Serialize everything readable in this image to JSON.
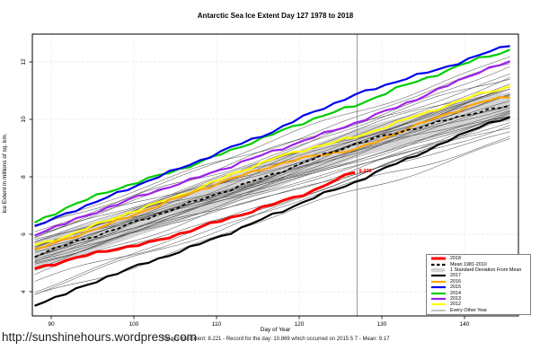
{
  "page": {
    "url_watermark": "http://sunshinehours.wordpress.com"
  },
  "chart_data": {
    "type": "line",
    "title": "Antarctic Sea Ice Extent Day 127 1978 to 2018",
    "xlabel": "Day of Year",
    "ylabel": "Ice Extent in millions of sq. km.",
    "caption": "Today's Ice Extent: 8.221  - Record for the day: 10.869 which occurred on 2015 5 7  - Mean: 9.17",
    "stats": {
      "today_extent": "8.221",
      "record_for_day": "10.869",
      "record_date": "2015 5 7",
      "mean_today": "9.17"
    },
    "x_ticks": [
      90,
      100,
      110,
      120,
      130,
      140
    ],
    "y_ticks": [
      4,
      6,
      8,
      10,
      12
    ],
    "xlim": [
      87.7,
      146.5
    ],
    "ylim": [
      3.16,
      12.97
    ],
    "grid": true,
    "legend_position": "bottom-right",
    "marker_line": {
      "day": 127,
      "color": "#8c8c8c"
    },
    "anchor_days": [
      88,
      92,
      97,
      102,
      107,
      112,
      117,
      122,
      127,
      132,
      137,
      142,
      145.5
    ],
    "series": [
      {
        "name": "2017",
        "color": "#000000",
        "width": 2.2,
        "values": [
          3.55,
          3.95,
          4.55,
          5.05,
          5.55,
          6.1,
          6.7,
          7.3,
          7.84,
          8.5,
          9.1,
          9.8,
          10.05
        ]
      },
      {
        "name": "2012",
        "color": "#ffff00",
        "width": 2.2,
        "values": [
          5.6,
          5.95,
          6.5,
          7.0,
          7.5,
          8.1,
          8.65,
          9.05,
          9.4,
          9.9,
          10.4,
          10.9,
          11.15
        ]
      },
      {
        "name": "2016",
        "color": "#ffa500",
        "width": 2.2,
        "values": [
          5.45,
          5.85,
          6.35,
          6.9,
          7.45,
          7.95,
          8.4,
          8.75,
          8.95,
          9.55,
          10.1,
          10.6,
          10.8
        ]
      },
      {
        "name": "2013",
        "color": "#a020f0",
        "width": 2.2,
        "values": [
          6.0,
          6.4,
          6.95,
          7.45,
          7.9,
          8.4,
          8.9,
          9.4,
          9.9,
          10.45,
          11.05,
          11.7,
          12.0
        ]
      },
      {
        "name": "2014",
        "color": "#00cd00",
        "width": 2.2,
        "values": [
          6.4,
          6.95,
          7.5,
          7.95,
          8.4,
          8.95,
          9.5,
          10.05,
          10.5,
          11.1,
          11.6,
          12.15,
          12.4
        ]
      },
      {
        "name": "2015",
        "color": "#0000ee",
        "width": 2.2,
        "values": [
          6.25,
          6.75,
          7.3,
          7.9,
          8.45,
          9.05,
          9.6,
          10.3,
          10.87,
          11.35,
          11.75,
          12.25,
          12.6
        ]
      },
      {
        "name": "Mean 1981-2010",
        "color": "#000000",
        "width": 1.8,
        "dash": "4 3",
        "values": [
          5.25,
          5.65,
          6.1,
          6.6,
          7.1,
          7.6,
          8.1,
          8.65,
          9.17,
          9.55,
          9.9,
          10.3,
          10.45
        ]
      },
      {
        "name": "2018",
        "color": "#ff0000",
        "width": 3,
        "end_label": "8.221",
        "days": [
          88,
          92,
          97,
          102,
          107,
          112,
          117,
          122,
          127
        ],
        "values": [
          4.8,
          5.1,
          5.45,
          5.7,
          6.15,
          6.6,
          7.05,
          7.55,
          8.22
        ]
      }
    ],
    "std_band": {
      "label": "1 Standard Deviation From Mean",
      "halfwidth": 0.5,
      "color": "#d4d4d4"
    },
    "other_years": {
      "label": "Every Other Year",
      "color": "#404040",
      "width": 0.55,
      "start_end": [
        [
          4.6,
          9.6
        ],
        [
          4.75,
          10.1
        ],
        [
          4.9,
          9.9
        ],
        [
          5.0,
          10.3
        ],
        [
          5.05,
          9.7
        ],
        [
          5.1,
          10.6
        ],
        [
          5.15,
          10.0
        ],
        [
          5.2,
          10.9
        ],
        [
          5.25,
          10.2
        ],
        [
          5.3,
          10.45
        ],
        [
          5.35,
          11.2
        ],
        [
          5.4,
          10.1
        ],
        [
          5.45,
          10.7
        ],
        [
          5.5,
          11.0
        ],
        [
          5.55,
          10.35
        ],
        [
          5.6,
          11.4
        ],
        [
          5.65,
          10.55
        ],
        [
          5.7,
          11.1
        ],
        [
          5.75,
          10.8
        ],
        [
          5.8,
          11.6
        ],
        [
          5.85,
          11.0
        ],
        [
          5.9,
          11.3
        ],
        [
          6.0,
          11.8
        ],
        [
          6.1,
          11.5
        ],
        [
          6.2,
          12.2
        ],
        [
          6.3,
          11.9
        ],
        [
          4.3,
          9.4
        ],
        [
          4.1,
          10.0
        ],
        [
          3.9,
          9.9
        ],
        [
          4.95,
          10.85
        ],
        [
          5.02,
          11.15
        ],
        [
          3.8,
          9.3
        ]
      ]
    },
    "legend": {
      "items": [
        {
          "label": "2018",
          "color": "#ff0000",
          "kind": "line",
          "width": 3
        },
        {
          "label": "Mean 1981-2010",
          "color": "#000000",
          "kind": "dashed",
          "width": 2.2
        },
        {
          "label": "1 Standard Deviation From Mean",
          "color": "#d3d3d3",
          "kind": "band"
        },
        {
          "label": "2017",
          "color": "#000000",
          "kind": "line",
          "width": 2.2
        },
        {
          "label": "2016",
          "color": "#ffa500",
          "kind": "line",
          "width": 2.2
        },
        {
          "label": "2015",
          "color": "#0000ee",
          "kind": "line",
          "width": 2.2
        },
        {
          "label": "2014",
          "color": "#00cd00",
          "kind": "line",
          "width": 2.2
        },
        {
          "label": "2013",
          "color": "#a020f0",
          "kind": "line",
          "width": 2.2
        },
        {
          "label": "2012",
          "color": "#ffff00",
          "kind": "line",
          "width": 2.2
        },
        {
          "label": "Every Other Year",
          "color": "#666666",
          "kind": "line",
          "width": 0.8
        }
      ]
    }
  }
}
